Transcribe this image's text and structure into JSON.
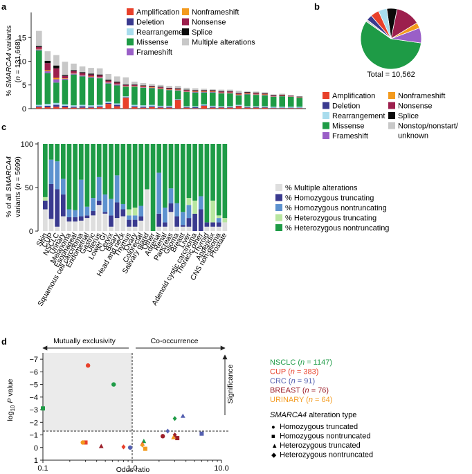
{
  "colors": {
    "amplification": "#e8402a",
    "deletion": "#3a3a8f",
    "rearrangement": "#a8dced",
    "missense": "#1e9b46",
    "frameshift": "#9a5fc7",
    "nonframeshift": "#f39a1e",
    "nonsense": "#9c1f4d",
    "splice": "#0a0a0a",
    "multiple": "#c8c8c8",
    "multiple_light": "#dedede",
    "homo_trunc": "#3a3a8f",
    "homo_nontrunc": "#5d92cf",
    "het_trunc": "#b8e6a0",
    "het_nontrunc": "#1e9b46",
    "nsclc": "#1e9b46",
    "cup": "#e8402a",
    "crc": "#5560b0",
    "breast": "#9c1f2a",
    "urinary": "#f39a1e",
    "shade": "#ebebeb"
  },
  "panels": {
    "a": {
      "letter": "a",
      "ylabel_line1_prefix": "% ",
      "ylabel_line1_italic": "SMARCA4",
      "ylabel_line1_suffix": " variants",
      "ylabel_line2_prefix": "(",
      "ylabel_line2_italic": "n",
      "ylabel_line2_suffix": " = 131,668)",
      "yticks": [
        "0",
        "5",
        "10",
        "15"
      ],
      "legend": [
        {
          "key": "amplification",
          "label": "Amplification"
        },
        {
          "key": "deletion",
          "label": "Deletion"
        },
        {
          "key": "rearrangement",
          "label": "Rearrangement"
        },
        {
          "key": "missense",
          "label": "Missense"
        },
        {
          "key": "frameshift",
          "label": "Frameshift"
        },
        {
          "key": "nonframeshift",
          "label": "Nonframeshift"
        },
        {
          "key": "nonsense",
          "label": "Nonsense"
        },
        {
          "key": "splice",
          "label": "Splice"
        },
        {
          "key": "multiple",
          "label": "Multiple alterations"
        }
      ]
    },
    "b": {
      "letter": "b",
      "total_label": "Total = 10,562",
      "legend": [
        {
          "key": "amplification",
          "label": "Amplification"
        },
        {
          "key": "deletion",
          "label": "Deletion"
        },
        {
          "key": "rearrangement",
          "label": "Rearrangement"
        },
        {
          "key": "missense",
          "label": "Missense"
        },
        {
          "key": "frameshift",
          "label": "Frameshift"
        },
        {
          "key": "nonframeshift",
          "label": "Nonframeshift"
        },
        {
          "key": "nonsense",
          "label": "Nonsense"
        },
        {
          "key": "splice",
          "label": "Splice"
        },
        {
          "key": "multiple",
          "label": "Nonstop/nonstart/",
          "label2": "unknown"
        }
      ]
    },
    "c": {
      "letter": "c",
      "ylabel_line1_prefix": "% of all ",
      "ylabel_line1_italic": "SMARCA4",
      "ylabel_line2_prefix": "variants (",
      "ylabel_line2_italic": "n",
      "ylabel_line2_suffix": " = 5699)",
      "yticks": [
        "0",
        "50",
        "100"
      ],
      "legend": [
        {
          "key": "multiple_light",
          "label": "% Multiple alterations"
        },
        {
          "key": "homo_trunc",
          "label": "% Homozygous truncating"
        },
        {
          "key": "homo_nontrunc",
          "label": "% Homozygous nontruncating"
        },
        {
          "key": "het_trunc",
          "label": "% Heterozygous truncating"
        },
        {
          "key": "het_nontrunc",
          "label": "% Heterozygous nontruncating"
        }
      ]
    },
    "d": {
      "letter": "d",
      "mutual_label": "Mutually exclusivity",
      "cooccur_label": "Co-occurrence",
      "significance_label": "Significance",
      "xlabel": "Odds ratio",
      "ylabel_prefix": "log",
      "ylabel_sub": "10",
      "ylabel_italic": " P",
      "ylabel_suffix": " value",
      "xticks": [
        "0.1",
        "1.0",
        "10.0"
      ],
      "yticks": [
        "−7",
        "−6",
        "−5",
        "−4",
        "−3",
        "−2",
        "−1",
        "0",
        "1"
      ],
      "cohorts": [
        {
          "key": "nsclc",
          "name": "NSCLC",
          "n": "1147"
        },
        {
          "key": "cup",
          "name": "CUP",
          "n": "383"
        },
        {
          "key": "crc",
          "name": "CRC",
          "n": "91"
        },
        {
          "key": "breast",
          "name": "BREAST",
          "n": "76"
        },
        {
          "key": "urinary",
          "name": "URINARY",
          "n": "64"
        }
      ],
      "n_italic": "n",
      "type_title_italic": "SMARCA4",
      "type_title_suffix": " alteration type",
      "types": [
        {
          "shape": "circle",
          "symbol": "●",
          "label": "Homozygous truncated"
        },
        {
          "shape": "square",
          "symbol": "■",
          "label": "Homozygous nontruncated"
        },
        {
          "shape": "triangle",
          "symbol": "▲",
          "label": "Heterozygous truncated"
        },
        {
          "shape": "diamond",
          "symbol": "◆",
          "label": "Heterozygous nontruncated"
        }
      ]
    }
  },
  "chart_data": [
    {
      "panel": "a",
      "type": "bar",
      "stacked": true,
      "ylabel": "% SMARCA4 variants (n = 131,668)",
      "ylim": [
        0,
        18
      ],
      "categories": [
        "Skin",
        "CUP",
        "NSCLC",
        "Urinary",
        "Melanoma",
        "Esophageal",
        "Squamous cell carcinoma",
        "Endometrial",
        "Gastric",
        "Uterus",
        "Lower GI",
        "Cervix",
        "Biliary",
        "Head and neck",
        "Thymus",
        "Ovary",
        "Colorectal",
        "Salivary gland",
        "Other",
        "Adrenal",
        "Renal",
        "Pancreas",
        "Glioma",
        "Breast",
        "Liver",
        "Adenoid cystic carcinoma",
        "Thoracic other",
        "Thyroid",
        "Appendix",
        "CNS non-glioma",
        "Prostate"
      ],
      "series": [
        {
          "name": "Amplification",
          "values": [
            0.3,
            0.3,
            0.4,
            0.3,
            0.2,
            0.2,
            0.2,
            0.3,
            1.0,
            0.5,
            2.3,
            0.3,
            0.2,
            0.3,
            0.2,
            0.2,
            1.8,
            0.2,
            0.1,
            0.6,
            0.2,
            0.2,
            0.2,
            0.5,
            0.2,
            0.2,
            0.2,
            0.1,
            0.1,
            0.1,
            0.1
          ]
        },
        {
          "name": "Deletion",
          "values": [
            0.2,
            0.3,
            0.4,
            0.3,
            0.2,
            0.3,
            0.2,
            0.2,
            0.2,
            0.3,
            0.1,
            0.2,
            0.2,
            0.2,
            0.2,
            0.2,
            0.1,
            0.1,
            0.2,
            0.1,
            0.2,
            0.1,
            0.1,
            0.1,
            0.1,
            0.1,
            0.1,
            0.1,
            0.1,
            0.1,
            0.1
          ]
        },
        {
          "name": "Rearrangement",
          "values": [
            0.3,
            0.4,
            0.4,
            0.3,
            0.3,
            0.3,
            0.3,
            0.3,
            0.3,
            0.3,
            0.2,
            0.3,
            0.3,
            0.3,
            0.2,
            0.2,
            0.1,
            0.2,
            0.2,
            0.2,
            0.2,
            0.2,
            0.2,
            0.2,
            0.2,
            0.2,
            0.2,
            0.2,
            0.2,
            0.2,
            0.2
          ]
        },
        {
          "name": "Missense",
          "values": [
            11.5,
            6.5,
            4.3,
            5.2,
            6.5,
            6.0,
            5.8,
            5.6,
            3.8,
            3.8,
            2.0,
            3.8,
            3.7,
            3.5,
            3.5,
            3.3,
            1.8,
            3.0,
            2.9,
            2.5,
            2.8,
            2.7,
            2.7,
            2.0,
            2.5,
            2.4,
            2.3,
            2.1,
            2.2,
            2.1,
            1.9
          ]
        },
        {
          "name": "Frameshift",
          "values": [
            0.2,
            0.4,
            0.7,
            0.2,
            0.2,
            0.2,
            0.2,
            0.2,
            0.2,
            0.2,
            0.1,
            0.1,
            0.1,
            0.1,
            0.1,
            0.1,
            0.1,
            0.1,
            0.1,
            0.1,
            0.1,
            0.1,
            0.1,
            0.1,
            0.1,
            0.1,
            0.1,
            0.05,
            0.05,
            0.05,
            0.05
          ]
        },
        {
          "name": "Nonframeshift",
          "values": [
            0.1,
            0.2,
            0.3,
            0.1,
            0.1,
            0.1,
            0.1,
            0.1,
            0.1,
            0.1,
            0.1,
            0.1,
            0.1,
            0.1,
            0.1,
            0.1,
            0.1,
            0.1,
            0.1,
            0.1,
            0.1,
            0.1,
            0.1,
            0.1,
            0.1,
            0.1,
            0.1,
            0.05,
            0.05,
            0.05,
            0.05
          ]
        },
        {
          "name": "Nonsense",
          "values": [
            0.4,
            1.5,
            2.0,
            0.5,
            0.4,
            0.4,
            0.4,
            0.3,
            0.3,
            0.3,
            0.2,
            0.2,
            0.2,
            0.2,
            0.2,
            0.2,
            0.2,
            0.2,
            0.2,
            0.2,
            0.2,
            0.2,
            0.2,
            0.2,
            0.2,
            0.2,
            0.15,
            0.15,
            0.15,
            0.1,
            0.1
          ]
        },
        {
          "name": "Splice",
          "values": [
            0.2,
            0.5,
            0.6,
            0.2,
            0.2,
            0.2,
            0.2,
            0.2,
            0.2,
            0.2,
            0.1,
            0.1,
            0.1,
            0.1,
            0.1,
            0.1,
            0.1,
            0.1,
            0.1,
            0.1,
            0.1,
            0.1,
            0.1,
            0.1,
            0.1,
            0.1,
            0.1,
            0.1,
            0.1,
            0.05,
            0.05
          ]
        },
        {
          "name": "Multiple alterations",
          "values": [
            3.2,
            2.0,
            2.2,
            2.8,
            1.4,
            1.2,
            1.2,
            1.3,
            1.2,
            1.1,
            1.5,
            0.6,
            0.5,
            0.4,
            0.4,
            0.4,
            0.5,
            0.4,
            0.4,
            0.3,
            0.2,
            0.3,
            0.3,
            0.5,
            0.2,
            0.2,
            0.2,
            0.15,
            0.2,
            0.1,
            0.1
          ]
        }
      ]
    },
    {
      "panel": "b",
      "type": "pie",
      "title": "Total = 10,562",
      "labels": [
        "Missense",
        "Frameshift",
        "Nonframeshift",
        "Nonsense",
        "Splice",
        "Rearrangement",
        "Amplification",
        "Deletion",
        "Nonstop/nonstart/unknown"
      ],
      "values": [
        57.5,
        8.0,
        3.0,
        13.0,
        5.5,
        4.5,
        4.5,
        3.0,
        1.0
      ]
    },
    {
      "panel": "c",
      "type": "bar",
      "stacked": true,
      "ylabel": "% of all SMARCA4 variants (n = 5699)",
      "ylim": [
        0,
        100
      ],
      "categories": [
        "Skin",
        "CUP",
        "NSCLC",
        "Urinary",
        "Melanoma",
        "Esophageal",
        "Squamous cell carcinoma",
        "Endometrial",
        "Gastric",
        "Uterus",
        "Lower GI",
        "Cervix",
        "Biliary",
        "Head and neck",
        "Thymus",
        "Ovary",
        "Colorectal",
        "Salivary gland",
        "Other",
        "Adrenal",
        "Renal",
        "Pancreas",
        "Glioma",
        "Breast",
        "Liver",
        "Adenoid cystic carcinoma",
        "Thoracic other",
        "Thyroid",
        "Appendix",
        "CNS non-glioma",
        "Prostate"
      ],
      "series": [
        {
          "name": "% Multiple alterations",
          "values": [
            25,
            14,
            5,
            17,
            11,
            11,
            12,
            15,
            18,
            30,
            20,
            5,
            15,
            17,
            5,
            5,
            12,
            48,
            0,
            5,
            5,
            22,
            5,
            5,
            5,
            0,
            0,
            5,
            5,
            5,
            10
          ]
        },
        {
          "name": "% Homozygous truncating",
          "values": [
            10,
            40,
            43,
            25,
            5,
            5,
            5,
            3,
            5,
            5,
            2,
            13,
            18,
            8,
            8,
            8,
            5,
            0,
            0,
            15,
            5,
            10,
            12,
            2,
            10,
            20,
            25,
            5,
            5,
            5,
            0
          ]
        },
        {
          "name": "% Homozygous nontruncating",
          "values": [
            0,
            28,
            32,
            18,
            9,
            8,
            42,
            10,
            15,
            27,
            20,
            19,
            31,
            6,
            5,
            5,
            12,
            0,
            0,
            47,
            17,
            17,
            15,
            15,
            15,
            0,
            15,
            0,
            0,
            5,
            0
          ]
        },
        {
          "name": "% Heterozygous truncating",
          "values": [
            4,
            0,
            0,
            0,
            0,
            0,
            0,
            0,
            0,
            0,
            0,
            0,
            0,
            0,
            7,
            9,
            0,
            0,
            0,
            0,
            0,
            0,
            0,
            0,
            8,
            15,
            0,
            0,
            25,
            3,
            5
          ]
        },
        {
          "name": "% Heterozygous nontruncating",
          "values": [
            61,
            18,
            20,
            40,
            75,
            76,
            41,
            72,
            62,
            38,
            58,
            63,
            36,
            69,
            75,
            73,
            71,
            52,
            100,
            33,
            73,
            51,
            68,
            78,
            62,
            65,
            60,
            90,
            65,
            82,
            85
          ]
        }
      ]
    },
    {
      "panel": "d",
      "type": "scatter",
      "xlabel": "Odds ratio",
      "ylabel": "log10 P value",
      "xscale": "log",
      "xlim": [
        0.1,
        10.0
      ],
      "ylim": [
        1,
        -7.5
      ],
      "significance_threshold": -1.3,
      "points": [
        {
          "cohort": "NSCLC",
          "type": "Homozygous truncated",
          "x": 0.62,
          "y": -5.0
        },
        {
          "cohort": "NSCLC",
          "type": "Homozygous nontruncated",
          "x": 0.1,
          "y": -3.1
        },
        {
          "cohort": "NSCLC",
          "type": "Heterozygous truncated",
          "x": 1.35,
          "y": -0.5
        },
        {
          "cohort": "NSCLC",
          "type": "Heterozygous nontruncated",
          "x": 3.0,
          "y": -2.3
        },
        {
          "cohort": "CUP",
          "type": "Homozygous truncated",
          "x": 0.32,
          "y": -6.5
        },
        {
          "cohort": "CUP",
          "type": "Homozygous nontruncated",
          "x": 0.3,
          "y": -0.4
        },
        {
          "cohort": "CUP",
          "type": "Heterozygous truncated",
          "x": 1.3,
          "y": -0.3
        },
        {
          "cohort": "CUP",
          "type": "Heterozygous nontruncated",
          "x": 0.8,
          "y": -0.05
        },
        {
          "cohort": "CRC",
          "type": "Homozygous truncated",
          "x": 0.95,
          "y": 0.0
        },
        {
          "cohort": "CRC",
          "type": "Homozygous nontruncated",
          "x": 6.0,
          "y": -1.1
        },
        {
          "cohort": "CRC",
          "type": "Heterozygous truncated",
          "x": 3.7,
          "y": -2.5
        },
        {
          "cohort": "CRC",
          "type": "Heterozygous nontruncated",
          "x": 2.5,
          "y": -1.3
        },
        {
          "cohort": "BREAST",
          "type": "Homozygous truncated",
          "x": 2.2,
          "y": -0.9
        },
        {
          "cohort": "BREAST",
          "type": "Homozygous nontruncated",
          "x": 3.2,
          "y": -0.75
        },
        {
          "cohort": "BREAST",
          "type": "Heterozygous truncated",
          "x": 0.45,
          "y": -0.1
        },
        {
          "cohort": "BREAST",
          "type": "Heterozygous nontruncated",
          "x": 3.0,
          "y": -1.0
        },
        {
          "cohort": "URINARY",
          "type": "Homozygous truncated",
          "x": 0.28,
          "y": -0.4
        },
        {
          "cohort": "URINARY",
          "type": "Homozygous nontruncated",
          "x": 1.4,
          "y": 0.1
        },
        {
          "cohort": "URINARY",
          "type": "Heterozygous truncated",
          "x": 2.9,
          "y": -0.8
        },
        {
          "cohort": "URINARY",
          "type": "Heterozygous nontruncated",
          "x": 1.3,
          "y": -0.2
        }
      ]
    }
  ]
}
